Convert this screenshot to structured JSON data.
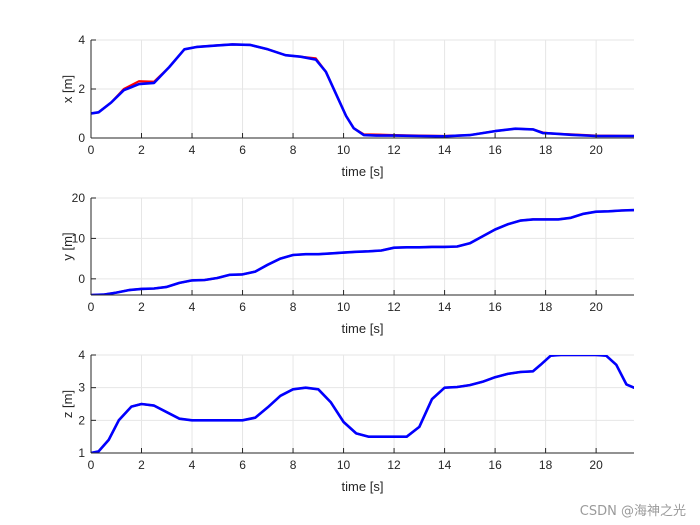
{
  "watermark": "CSDN @海神之光",
  "chart_data": [
    {
      "type": "line",
      "xlabel": "time [s]",
      "ylabel": "x [m]",
      "xlim": [
        0,
        21.5
      ],
      "ylim": [
        0,
        4
      ],
      "xticks": [
        0,
        2,
        4,
        6,
        8,
        10,
        12,
        14,
        16,
        18,
        20
      ],
      "yticks": [
        0,
        2,
        4
      ],
      "grid": true,
      "series": [
        {
          "color": "#ff0000",
          "x": [
            0,
            0.3,
            0.8,
            1.3,
            1.9,
            2.5,
            3.1,
            3.7,
            4.2,
            5.0,
            5.6,
            6.3,
            7.0,
            7.7,
            8.3,
            8.9,
            9.3,
            9.7,
            10.1,
            10.4,
            10.8,
            11.3,
            12.0,
            13.0,
            14.0,
            15.0,
            16.0,
            16.8,
            17.5,
            17.9,
            18.3,
            19.0,
            20.0,
            21.5
          ],
          "y": [
            1.0,
            1.05,
            1.45,
            2.0,
            2.32,
            2.3,
            2.9,
            3.62,
            3.72,
            3.78,
            3.82,
            3.8,
            3.62,
            3.38,
            3.32,
            3.25,
            2.7,
            1.8,
            0.9,
            0.4,
            0.15,
            0.14,
            0.12,
            0.1,
            0.08,
            0.12,
            0.28,
            0.38,
            0.35,
            0.22,
            0.18,
            0.15,
            0.1,
            0.08
          ]
        },
        {
          "color": "#0000ff",
          "x": [
            0,
            0.3,
            0.8,
            1.3,
            1.9,
            2.5,
            3.1,
            3.7,
            4.2,
            5.0,
            5.6,
            6.3,
            7.0,
            7.7,
            8.3,
            8.9,
            9.3,
            9.7,
            10.1,
            10.4,
            10.8,
            11.3,
            12.0,
            13.0,
            14.0,
            15.0,
            16.0,
            16.8,
            17.5,
            17.9,
            18.3,
            19.0,
            20.0,
            21.5
          ],
          "y": [
            1.0,
            1.05,
            1.45,
            1.95,
            2.2,
            2.25,
            2.9,
            3.62,
            3.72,
            3.78,
            3.82,
            3.8,
            3.62,
            3.38,
            3.32,
            3.2,
            2.7,
            1.8,
            0.9,
            0.4,
            0.12,
            0.1,
            0.1,
            0.08,
            0.07,
            0.12,
            0.28,
            0.38,
            0.35,
            0.2,
            0.18,
            0.13,
            0.08,
            0.08
          ]
        }
      ]
    },
    {
      "type": "line",
      "xlabel": "time [s]",
      "ylabel": "y [m]",
      "xlim": [
        0,
        21.5
      ],
      "ylim": [
        -4,
        20
      ],
      "xticks": [
        0,
        2,
        4,
        6,
        8,
        10,
        12,
        14,
        16,
        18,
        20
      ],
      "yticks": [
        0,
        10,
        20
      ],
      "grid": true,
      "series": [
        {
          "color": "#ff0000",
          "x": [
            0,
            0.5,
            1.0,
            1.5,
            2.0,
            2.5,
            3.0,
            3.5,
            4.0,
            4.5,
            5.0,
            5.5,
            6.0,
            6.5,
            7.0,
            7.5,
            8.0,
            8.5,
            9.0,
            9.5,
            10.0,
            10.5,
            11.0,
            11.5,
            12.0,
            12.5,
            13.0,
            13.5,
            14.0,
            14.5,
            15.0,
            15.5,
            16.0,
            16.5,
            17.0,
            17.5,
            18.0,
            18.5,
            19.0,
            19.5,
            20.0,
            20.5,
            21.0,
            21.5
          ],
          "y": [
            -4.0,
            -3.9,
            -3.4,
            -2.8,
            -2.5,
            -2.4,
            -2.0,
            -1.0,
            -0.4,
            -0.3,
            0.2,
            1.0,
            1.1,
            1.8,
            3.5,
            5.0,
            5.9,
            6.1,
            6.1,
            6.3,
            6.5,
            6.7,
            6.8,
            7.0,
            7.7,
            7.8,
            7.8,
            7.9,
            7.9,
            8.0,
            8.8,
            10.5,
            12.2,
            13.5,
            14.4,
            14.7,
            14.7,
            14.7,
            15.1,
            16.1,
            16.6,
            16.7,
            16.9,
            17.0
          ]
        },
        {
          "color": "#0000ff",
          "x": [
            0,
            0.5,
            1.0,
            1.5,
            2.0,
            2.5,
            3.0,
            3.5,
            4.0,
            4.5,
            5.0,
            5.5,
            6.0,
            6.5,
            7.0,
            7.5,
            8.0,
            8.5,
            9.0,
            9.5,
            10.0,
            10.5,
            11.0,
            11.5,
            12.0,
            12.5,
            13.0,
            13.5,
            14.0,
            14.5,
            15.0,
            15.5,
            16.0,
            16.5,
            17.0,
            17.5,
            18.0,
            18.5,
            19.0,
            19.5,
            20.0,
            20.5,
            21.0,
            21.5
          ],
          "y": [
            -4.0,
            -3.9,
            -3.4,
            -2.8,
            -2.5,
            -2.4,
            -2.0,
            -1.0,
            -0.4,
            -0.3,
            0.2,
            1.0,
            1.1,
            1.8,
            3.5,
            5.0,
            5.9,
            6.1,
            6.1,
            6.3,
            6.5,
            6.7,
            6.8,
            7.0,
            7.7,
            7.8,
            7.8,
            7.9,
            7.9,
            8.0,
            8.8,
            10.5,
            12.2,
            13.5,
            14.4,
            14.7,
            14.7,
            14.7,
            15.1,
            16.1,
            16.6,
            16.7,
            16.9,
            17.0
          ]
        }
      ]
    },
    {
      "type": "line",
      "xlabel": "time [s]",
      "ylabel": "z [m]",
      "xlim": [
        0,
        21.5
      ],
      "ylim": [
        1,
        4
      ],
      "xticks": [
        0,
        2,
        4,
        6,
        8,
        10,
        12,
        14,
        16,
        18,
        20
      ],
      "yticks": [
        1,
        2,
        3,
        4
      ],
      "grid": true,
      "series": [
        {
          "color": "#ff0000",
          "x": [
            0,
            0.3,
            0.7,
            1.1,
            1.6,
            2.0,
            2.5,
            3.0,
            3.5,
            4.0,
            4.5,
            5.0,
            5.5,
            6.0,
            6.5,
            7.0,
            7.5,
            8.0,
            8.5,
            9.0,
            9.5,
            10.0,
            10.5,
            11.0,
            11.5,
            12.0,
            12.5,
            13.0,
            13.5,
            14.0,
            14.5,
            15.0,
            15.5,
            16.0,
            16.5,
            17.0,
            17.5,
            17.8,
            18.2,
            18.6,
            19.0,
            19.5,
            20.0,
            20.4,
            20.8,
            21.2,
            21.5
          ],
          "y": [
            1.0,
            1.05,
            1.4,
            2.0,
            2.42,
            2.5,
            2.45,
            2.25,
            2.05,
            2.0,
            2.0,
            2.0,
            2.0,
            2.0,
            2.08,
            2.4,
            2.75,
            2.95,
            3.0,
            2.95,
            2.55,
            1.95,
            1.6,
            1.5,
            1.5,
            1.5,
            1.5,
            1.8,
            2.65,
            3.0,
            3.02,
            3.08,
            3.18,
            3.32,
            3.42,
            3.48,
            3.5,
            3.7,
            3.98,
            4.0,
            4.0,
            4.0,
            4.0,
            3.98,
            3.7,
            3.1,
            3.0
          ]
        },
        {
          "color": "#0000ff",
          "x": [
            0,
            0.3,
            0.7,
            1.1,
            1.6,
            2.0,
            2.5,
            3.0,
            3.5,
            4.0,
            4.5,
            5.0,
            5.5,
            6.0,
            6.5,
            7.0,
            7.5,
            8.0,
            8.5,
            9.0,
            9.5,
            10.0,
            10.5,
            11.0,
            11.5,
            12.0,
            12.5,
            13.0,
            13.5,
            14.0,
            14.5,
            15.0,
            15.5,
            16.0,
            16.5,
            17.0,
            17.5,
            17.8,
            18.2,
            18.6,
            19.0,
            19.5,
            20.0,
            20.4,
            20.8,
            21.2,
            21.5
          ],
          "y": [
            1.0,
            1.05,
            1.4,
            2.0,
            2.42,
            2.5,
            2.45,
            2.25,
            2.05,
            2.0,
            2.0,
            2.0,
            2.0,
            2.0,
            2.08,
            2.4,
            2.75,
            2.95,
            3.0,
            2.95,
            2.55,
            1.95,
            1.6,
            1.5,
            1.5,
            1.5,
            1.5,
            1.8,
            2.65,
            3.0,
            3.02,
            3.08,
            3.18,
            3.32,
            3.42,
            3.48,
            3.5,
            3.7,
            3.98,
            4.0,
            4.0,
            4.0,
            4.0,
            3.98,
            3.7,
            3.1,
            3.0
          ]
        }
      ]
    }
  ]
}
